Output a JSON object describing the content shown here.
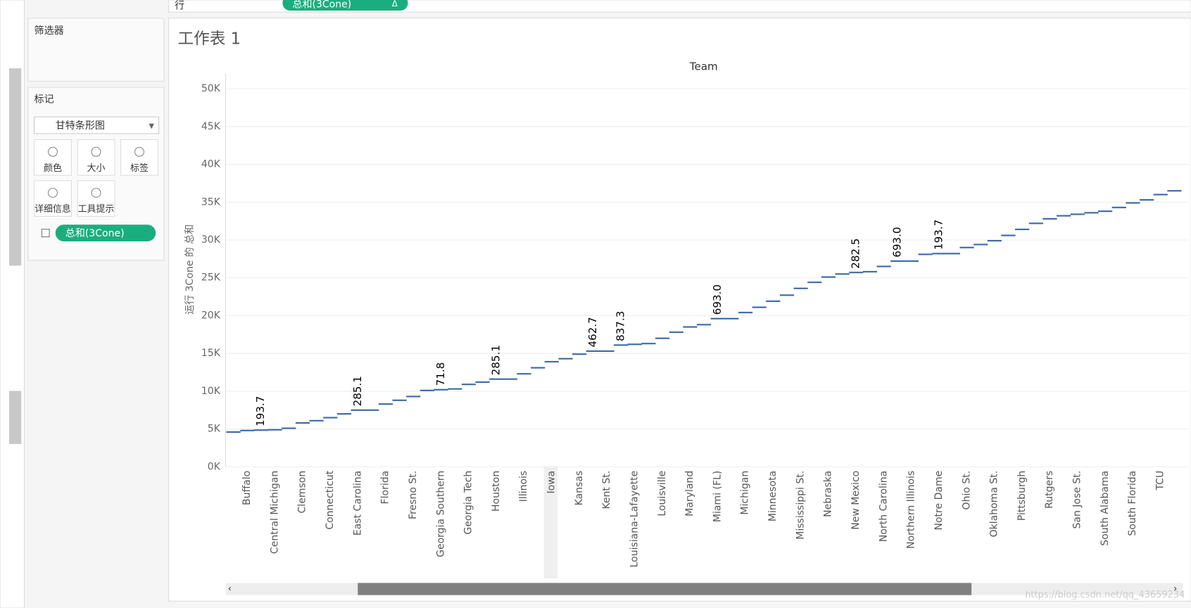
{
  "shelf": {
    "label": "行",
    "pill": "总和(3Cone)",
    "pill_icon": "Δ"
  },
  "filters": {
    "title": "筛选器"
  },
  "marks": {
    "title": "标记",
    "mark_type": "甘特条形图",
    "buttons": [
      "颜色",
      "大小",
      "标签",
      "详细信息",
      "工具提示"
    ],
    "pill": "总和(3Cone)"
  },
  "sheet": {
    "title": "工作表 1"
  },
  "watermark": "https://blog.csdn.net/qq_43659234",
  "chart_data": {
    "type": "gantt",
    "title": "Team",
    "y_label": "运行 3Cone 的 总和",
    "color": "#3d6ba6",
    "grid": true,
    "ylim": [
      0,
      52000
    ],
    "yticks": [
      {
        "value": 0,
        "label": "0K"
      },
      {
        "value": 5000,
        "label": "5K"
      },
      {
        "value": 10000,
        "label": "10K"
      },
      {
        "value": 15000,
        "label": "15K"
      },
      {
        "value": 20000,
        "label": "20K"
      },
      {
        "value": 25000,
        "label": "25K"
      },
      {
        "value": 30000,
        "label": "30K"
      },
      {
        "value": 35000,
        "label": "35K"
      },
      {
        "value": 40000,
        "label": "40K"
      },
      {
        "value": 45000,
        "label": "45K"
      },
      {
        "value": 50000,
        "label": "50K"
      }
    ],
    "categories": [
      null,
      "Buffalo",
      null,
      "Central Michigan",
      null,
      "Clemson",
      null,
      "Connecticut",
      null,
      "East Carolina",
      null,
      "Florida",
      null,
      "Fresno St.",
      null,
      "Georgia Southern",
      null,
      "Georgia Tech",
      null,
      "Houston",
      null,
      "Illinois",
      null,
      "Iowa",
      null,
      "Kansas",
      null,
      "Kent St.",
      null,
      "Louisiana-Lafayette",
      null,
      "Louisville",
      null,
      "Maryland",
      null,
      "Miami (FL)",
      null,
      "Michigan",
      null,
      "Minnesota",
      null,
      "Mississippi St.",
      null,
      "Nebraska",
      null,
      "New Mexico",
      null,
      "North Carolina",
      null,
      "Northern Illinois",
      null,
      "Notre Dame",
      null,
      "Ohio St.",
      null,
      "Oklahoma St.",
      null,
      "Pittsburgh",
      null,
      "Rutgers",
      null,
      "San Jose St.",
      null,
      "South Alabama",
      null,
      "South Florida",
      null,
      "TCU",
      null
    ],
    "values": [
      4600,
      4800,
      4850,
      4900,
      5100,
      5800,
      6100,
      6500,
      7000,
      7500,
      7500,
      8300,
      8800,
      9300,
      10100,
      10200,
      10300,
      10900,
      11200,
      11600,
      11600,
      12300,
      13100,
      13900,
      14300,
      14900,
      15300,
      15300,
      16100,
      16200,
      16300,
      17000,
      17800,
      18500,
      18800,
      19600,
      19600,
      20400,
      21100,
      21900,
      22700,
      23600,
      24400,
      25100,
      25500,
      25700,
      25800,
      26500,
      27200,
      27200,
      28100,
      28200,
      28200,
      29000,
      29400,
      29900,
      30600,
      31400,
      32200,
      32800,
      33200,
      33400,
      33600,
      33800,
      34300,
      34900,
      35300,
      36000,
      36500
    ],
    "mark_labels": [
      null,
      null,
      "193.7",
      null,
      null,
      null,
      null,
      null,
      null,
      "285.1",
      null,
      null,
      null,
      null,
      null,
      "71.8",
      null,
      null,
      null,
      "285.1",
      null,
      null,
      null,
      null,
      null,
      null,
      "462.7",
      null,
      "837.3",
      null,
      null,
      null,
      null,
      null,
      null,
      "693.0",
      null,
      null,
      null,
      null,
      null,
      null,
      null,
      null,
      null,
      "282.5",
      null,
      null,
      "693.0",
      null,
      null,
      "193.7",
      null,
      null,
      null,
      null,
      null,
      null,
      null,
      null,
      null,
      null,
      null,
      null,
      null,
      null,
      null,
      null,
      null
    ]
  }
}
